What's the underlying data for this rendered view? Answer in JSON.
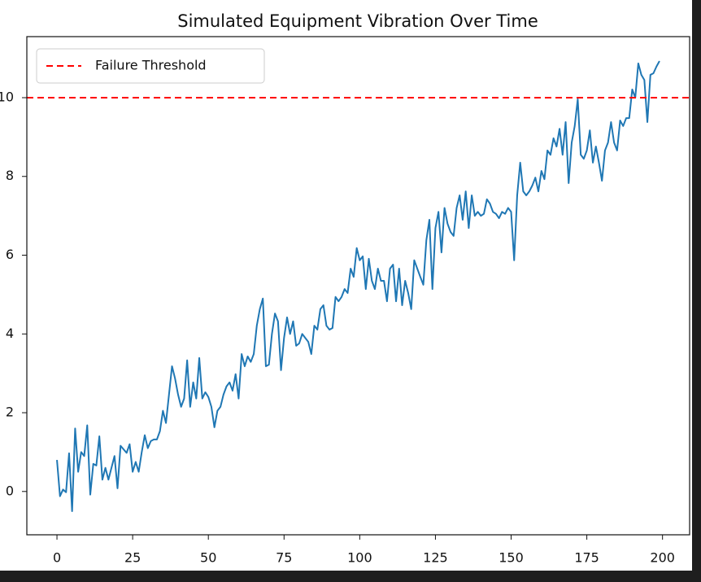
{
  "chart_data": {
    "type": "line",
    "title": "Simulated Equipment Vibration Over Time",
    "x": [
      0,
      1,
      2,
      3,
      4,
      5,
      6,
      7,
      8,
      9,
      10,
      11,
      12,
      13,
      14,
      15,
      16,
      17,
      18,
      19,
      20,
      21,
      22,
      23,
      24,
      25,
      26,
      27,
      28,
      29,
      30,
      31,
      32,
      33,
      34,
      35,
      36,
      37,
      38,
      39,
      40,
      41,
      42,
      43,
      44,
      45,
      46,
      47,
      48,
      49,
      50,
      51,
      52,
      53,
      54,
      55,
      56,
      57,
      58,
      59,
      60,
      61,
      62,
      63,
      64,
      65,
      66,
      67,
      68,
      69,
      70,
      71,
      72,
      73,
      74,
      75,
      76,
      77,
      78,
      79,
      80,
      81,
      82,
      83,
      84,
      85,
      86,
      87,
      88,
      89,
      90,
      91,
      92,
      93,
      94,
      95,
      96,
      97,
      98,
      99,
      100,
      101,
      102,
      103,
      104,
      105,
      106,
      107,
      108,
      109,
      110,
      111,
      112,
      113,
      114,
      115,
      116,
      117,
      118,
      119,
      120,
      121,
      122,
      123,
      124,
      125,
      126,
      127,
      128,
      129,
      130,
      131,
      132,
      133,
      134,
      135,
      136,
      137,
      138,
      139,
      140,
      141,
      142,
      143,
      144,
      145,
      146,
      147,
      148,
      149,
      150,
      151,
      152,
      153,
      154,
      155,
      156,
      157,
      158,
      159,
      160,
      161,
      162,
      163,
      164,
      165,
      166,
      167,
      168,
      169,
      170,
      171,
      172,
      173,
      174,
      175,
      176,
      177,
      178,
      179,
      180,
      181,
      182,
      183,
      184,
      185,
      186,
      187,
      188,
      189,
      190,
      191,
      192,
      193,
      194,
      195,
      196,
      197,
      198,
      199
    ],
    "series": [
      {
        "color": "#1f77b4",
        "values": [
          0.8,
          -0.12,
          0.05,
          -0.02,
          0.97,
          -0.5,
          1.6,
          0.5,
          1.0,
          0.9,
          1.68,
          -0.08,
          0.7,
          0.66,
          1.4,
          0.3,
          0.6,
          0.3,
          0.6,
          0.9,
          0.08,
          1.16,
          1.07,
          0.98,
          1.2,
          0.5,
          0.75,
          0.5,
          1.0,
          1.43,
          1.1,
          1.28,
          1.32,
          1.32,
          1.53,
          2.05,
          1.74,
          2.46,
          3.18,
          2.87,
          2.46,
          2.15,
          2.36,
          3.33,
          2.15,
          2.77,
          2.36,
          3.39,
          2.36,
          2.52,
          2.4,
          2.15,
          1.63,
          2.05,
          2.15,
          2.46,
          2.67,
          2.77,
          2.56,
          2.98,
          2.36,
          3.49,
          3.18,
          3.43,
          3.29,
          3.49,
          4.21,
          4.63,
          4.9,
          3.18,
          3.22,
          4.0,
          4.52,
          4.32,
          3.08,
          3.9,
          4.42,
          4.0,
          4.32,
          3.7,
          3.76,
          4.0,
          3.9,
          3.8,
          3.49,
          4.21,
          4.11,
          4.63,
          4.73,
          4.21,
          4.11,
          4.15,
          4.94,
          4.83,
          4.94,
          5.14,
          5.04,
          5.66,
          5.45,
          6.18,
          5.87,
          5.97,
          5.14,
          5.91,
          5.35,
          5.14,
          5.66,
          5.35,
          5.35,
          4.83,
          5.66,
          5.76,
          4.83,
          5.66,
          4.73,
          5.35,
          5.04,
          4.63,
          5.87,
          5.66,
          5.45,
          5.25,
          6.38,
          6.9,
          5.14,
          6.69,
          7.1,
          6.07,
          7.2,
          6.8,
          6.59,
          6.49,
          7.2,
          7.52,
          6.9,
          7.62,
          6.69,
          7.52,
          7.0,
          7.1,
          7.0,
          7.05,
          7.42,
          7.31,
          7.1,
          7.05,
          6.94,
          7.1,
          7.05,
          7.2,
          7.1,
          5.87,
          7.52,
          8.35,
          7.62,
          7.52,
          7.62,
          7.77,
          7.97,
          7.62,
          8.14,
          7.93,
          8.66,
          8.55,
          8.97,
          8.76,
          9.21,
          8.55,
          9.38,
          7.83,
          8.86,
          9.28,
          9.96,
          8.55,
          8.45,
          8.66,
          9.17,
          8.35,
          8.76,
          8.35,
          7.89,
          8.66,
          8.86,
          9.38,
          8.86,
          8.66,
          9.42,
          9.28,
          9.48,
          9.48,
          10.21,
          10.0,
          10.87,
          10.58,
          10.45,
          9.38,
          10.58,
          10.62,
          10.79,
          10.93
        ]
      }
    ],
    "hline": {
      "name": "Failure Threshold",
      "value": 10,
      "color": "#ff0000"
    },
    "xlim": [
      -9.95,
      208.95
    ],
    "xticks": [
      0,
      25,
      50,
      75,
      100,
      125,
      150,
      175,
      200
    ],
    "ylim": [
      -1.1,
      11.55
    ],
    "yticks": [
      0,
      2,
      4,
      6,
      8,
      10
    ],
    "legend": "upper left"
  }
}
